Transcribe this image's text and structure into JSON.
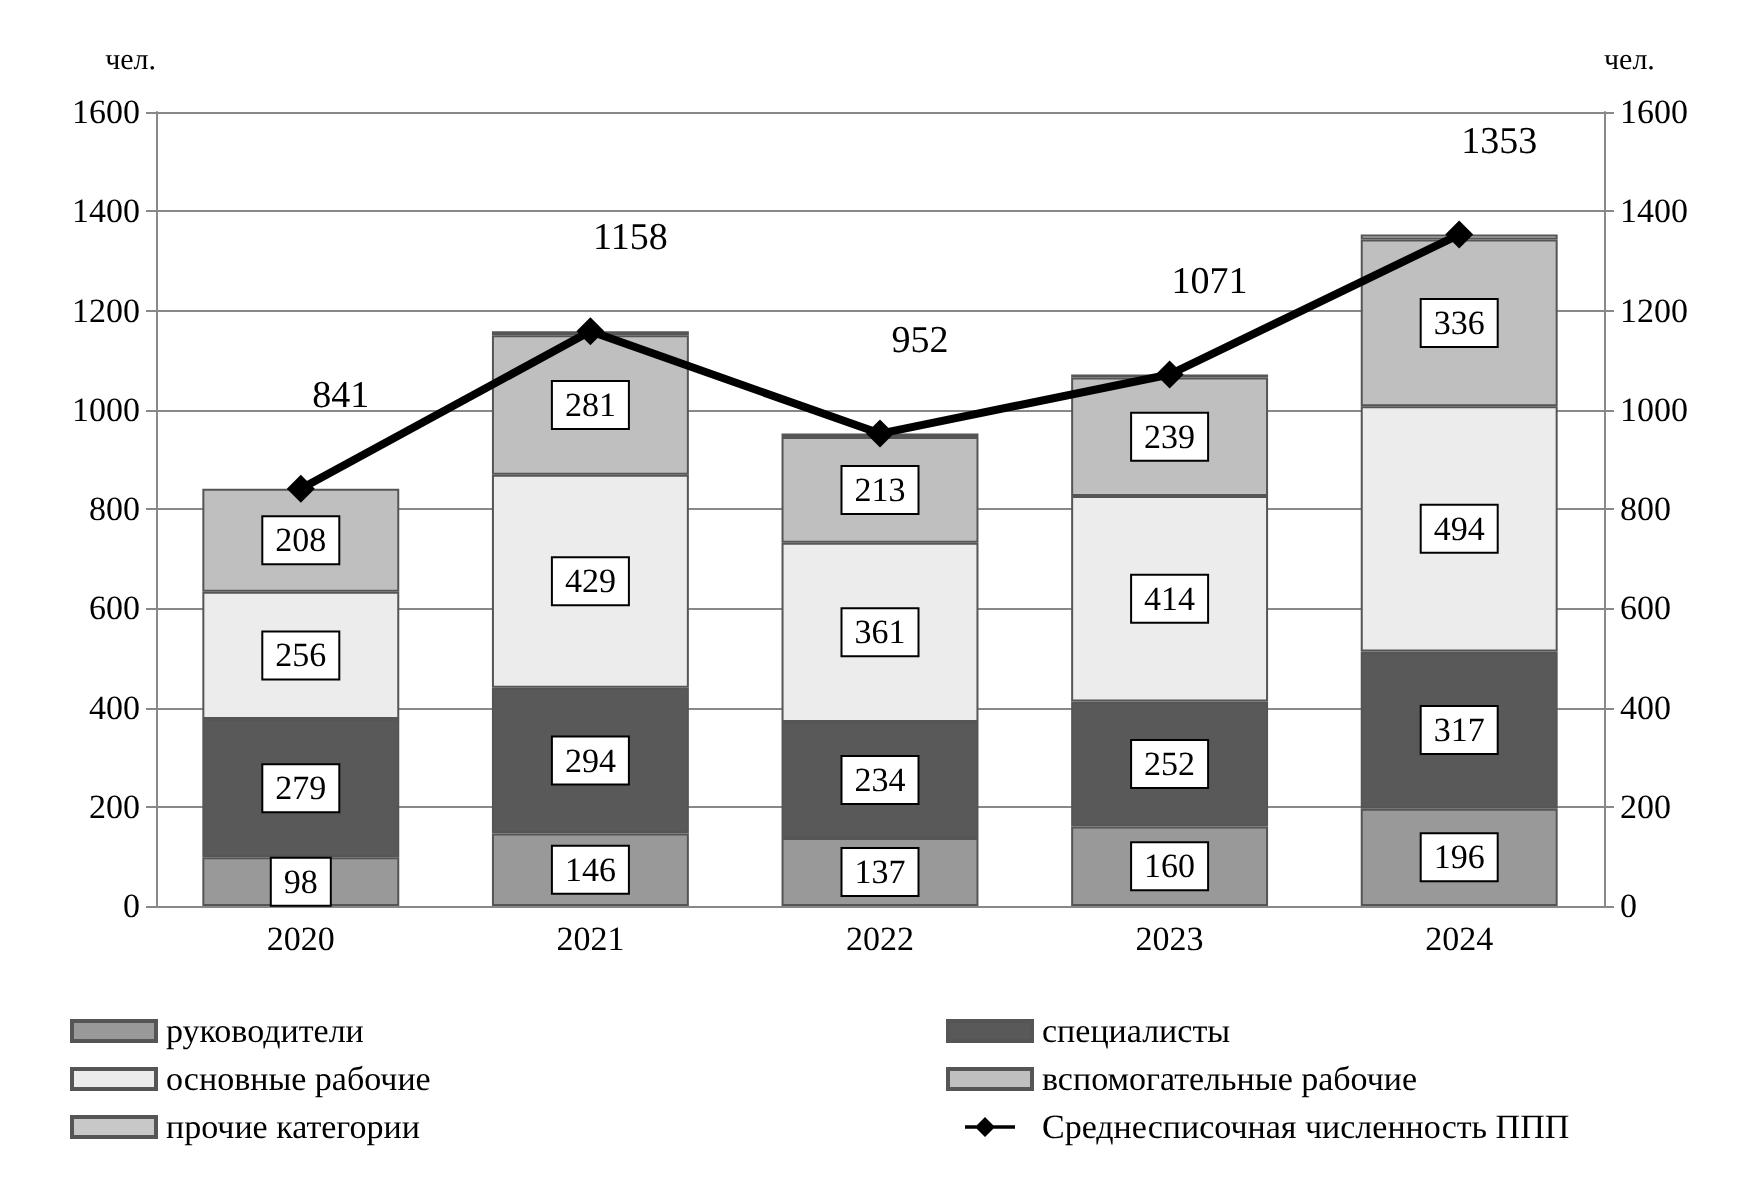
{
  "chart_data": {
    "type": "bar",
    "stacked": true,
    "categories": [
      "2020",
      "2021",
      "2022",
      "2023",
      "2024"
    ],
    "ylabel": "чел.",
    "y2label": "чел.",
    "ylim": [
      0,
      1600
    ],
    "yticks": [
      0,
      200,
      400,
      600,
      800,
      1000,
      1200,
      1400,
      1600
    ],
    "y2lim": [
      0,
      1600
    ],
    "y2ticks": [
      0,
      200,
      400,
      600,
      800,
      1000,
      1200,
      1400,
      1600
    ],
    "grid": "y",
    "legend": "bottom",
    "series": [
      {
        "name": "руководители",
        "color": "#999999",
        "values": [
          98,
          146,
          137,
          160,
          196
        ],
        "value_labels": [
          "98",
          "146",
          "137",
          "160",
          "196"
        ]
      },
      {
        "name": "специалисты",
        "color": "#595959",
        "values": [
          279,
          294,
          234,
          252,
          317
        ],
        "value_labels": [
          "279",
          "294",
          "234",
          "252",
          "317"
        ]
      },
      {
        "name": "основные рабочие",
        "color": "#ececec",
        "values": [
          256,
          429,
          361,
          414,
          494
        ],
        "value_labels": [
          "256",
          "429",
          "361",
          "414",
          "494"
        ]
      },
      {
        "name": "вспомогательные рабочие",
        "color": "#bfbfbf",
        "values": [
          208,
          281,
          213,
          239,
          336
        ],
        "value_labels": [
          "208",
          "281",
          "213",
          "239",
          "336"
        ]
      },
      {
        "name": "прочие категории",
        "color": "#c8c8c8",
        "values": [
          0,
          8,
          7,
          6,
          10
        ],
        "value_labels": [
          null,
          null,
          null,
          null,
          null
        ]
      },
      {
        "name": "Среднесписочная численность ППП",
        "type": "line",
        "color": "#000000",
        "marker": "diamond",
        "line_style": "solid",
        "values": [
          841,
          1158,
          952,
          1071,
          1353
        ],
        "value_labels": [
          "841",
          "1158",
          "952",
          "1071",
          "1353"
        ]
      }
    ]
  }
}
